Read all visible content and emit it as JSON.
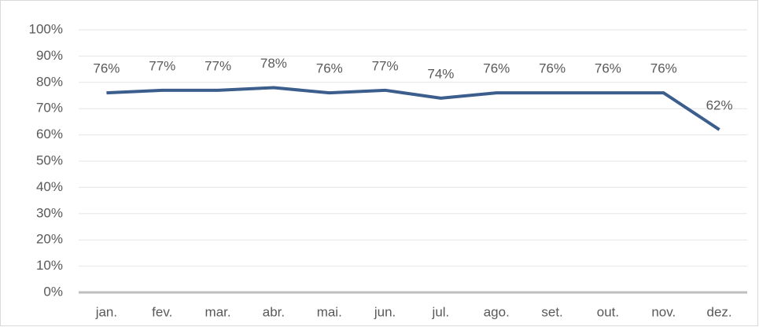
{
  "chart_data": {
    "type": "line",
    "categories": [
      "jan.",
      "fev.",
      "mar.",
      "abr.",
      "mai.",
      "jun.",
      "jul.",
      "ago.",
      "set.",
      "out.",
      "nov.",
      "dez."
    ],
    "series": [
      {
        "color": "#3b5e8c",
        "values": [
          76,
          77,
          77,
          78,
          76,
          77,
          74,
          76,
          76,
          76,
          76,
          62
        ],
        "value_labels": [
          "76%",
          "77%",
          "77%",
          "78%",
          "76%",
          "77%",
          "74%",
          "76%",
          "76%",
          "76%",
          "76%",
          "62%"
        ]
      }
    ],
    "ylim": [
      0,
      100
    ],
    "yticks": [
      {
        "value": 0,
        "label": "0%"
      },
      {
        "value": 10,
        "label": "10%"
      },
      {
        "value": 20,
        "label": "20%"
      },
      {
        "value": 30,
        "label": "30%"
      },
      {
        "value": 40,
        "label": "40%"
      },
      {
        "value": 50,
        "label": "50%"
      },
      {
        "value": 60,
        "label": "60%"
      },
      {
        "value": 70,
        "label": "70%"
      },
      {
        "value": 80,
        "label": "80%"
      },
      {
        "value": 90,
        "label": "90%"
      },
      {
        "value": 100,
        "label": "100%"
      }
    ],
    "grid": true
  }
}
